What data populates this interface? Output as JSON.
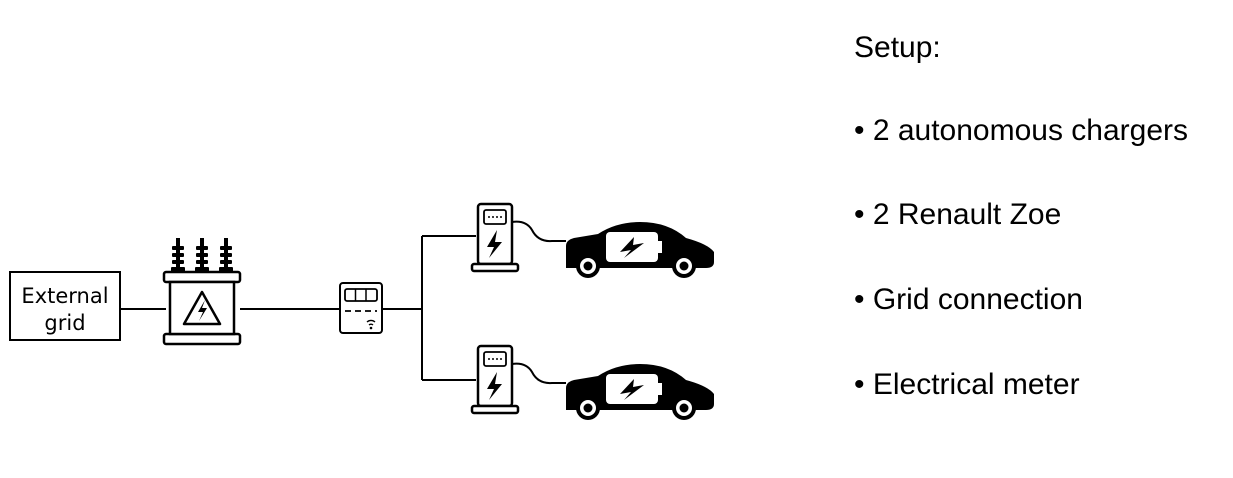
{
  "diagram": {
    "external_grid_label_line1": "External",
    "external_grid_label_line2": "grid"
  },
  "setup": {
    "title": "Setup:",
    "items": [
      "• 2 autonomous chargers",
      "• 2 Renault Zoe",
      "• Grid connection",
      "• Electrical meter"
    ]
  }
}
